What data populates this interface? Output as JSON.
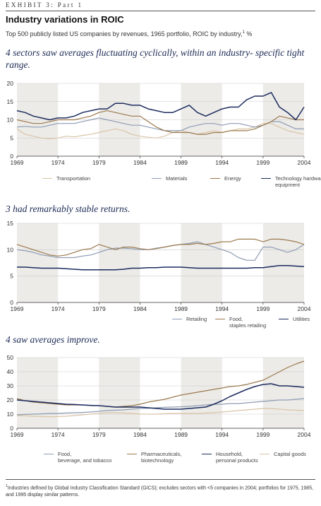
{
  "header": {
    "exhibit": "EXHIBIT 3: Part 1",
    "title": "Industry variations in ROIC",
    "subtitle_text": "Top 500 publicly listed US companies by revenues, 1965 portfolio, ROIC by industry,",
    "subtitle_sup": "1",
    "subtitle_tail": " %"
  },
  "colors": {
    "band": "#ecebe8",
    "grid": "#c9c9c9",
    "axis": "#333333"
  },
  "chart_data": [
    {
      "type": "line",
      "headline": "4 sectors saw averages fluctuating cyclically, within an industry- specific tight range.",
      "title": "",
      "xlabel": "",
      "ylabel": "",
      "xlim": [
        1969,
        2004
      ],
      "ylim": [
        0,
        20
      ],
      "y_ticks": [
        0,
        5,
        10,
        15,
        20
      ],
      "x_ticks": [
        1969,
        1974,
        1979,
        1984,
        1989,
        1994,
        1999,
        2004
      ],
      "grid": true,
      "x": [
        1969,
        1970,
        1971,
        1972,
        1973,
        1974,
        1975,
        1976,
        1977,
        1978,
        1979,
        1980,
        1981,
        1982,
        1983,
        1984,
        1985,
        1986,
        1987,
        1988,
        1989,
        1990,
        1991,
        1992,
        1993,
        1994,
        1995,
        1996,
        1997,
        1998,
        1999,
        2000,
        2001,
        2002,
        2003,
        2004
      ],
      "series": [
        {
          "name": "Transportation",
          "color": "#d9c4a6",
          "values": [
            7.5,
            6.0,
            5.5,
            5.0,
            4.8,
            5.0,
            5.5,
            5.3,
            5.7,
            6.0,
            6.5,
            7.0,
            7.5,
            7.0,
            6.0,
            5.5,
            5.2,
            5.0,
            5.5,
            6.5,
            7.0,
            6.5,
            6.0,
            6.5,
            7.0,
            6.5,
            7.0,
            7.5,
            7.5,
            8.0,
            9.0,
            9.0,
            8.0,
            7.0,
            6.5,
            6.0
          ]
        },
        {
          "name": "Materials",
          "color": "#8e9cb4",
          "values": [
            8.0,
            8.2,
            8.0,
            8.0,
            8.5,
            9.0,
            9.0,
            9.0,
            9.5,
            10.0,
            10.5,
            10.0,
            9.5,
            9.0,
            8.5,
            8.5,
            8.0,
            7.5,
            7.0,
            7.0,
            7.0,
            8.0,
            8.5,
            9.0,
            9.0,
            8.5,
            9.0,
            9.0,
            8.5,
            8.0,
            8.5,
            9.5,
            9.5,
            8.5,
            7.5,
            7.5
          ]
        },
        {
          "name": "Energy",
          "color": "#9c7a4e",
          "values": [
            10.0,
            9.5,
            9.0,
            9.0,
            9.5,
            10.0,
            10.0,
            10.0,
            10.5,
            11.0,
            12.0,
            12.5,
            12.0,
            11.5,
            11.0,
            11.0,
            9.5,
            8.0,
            7.0,
            6.5,
            6.5,
            6.5,
            6.0,
            6.0,
            6.5,
            6.5,
            7.0,
            7.0,
            7.0,
            7.5,
            8.5,
            9.5,
            11.0,
            10.5,
            10.0,
            10.0
          ]
        },
        {
          "name": "Technology hardware, equipment",
          "color": "#1c2c5e",
          "values": [
            12.5,
            12.0,
            11.0,
            10.5,
            10.0,
            10.5,
            10.5,
            11.0,
            12.0,
            12.5,
            13.0,
            13.0,
            14.5,
            14.5,
            14.0,
            14.0,
            13.0,
            12.5,
            12.0,
            12.0,
            13.0,
            14.0,
            12.0,
            11.0,
            12.0,
            13.0,
            13.5,
            13.5,
            15.5,
            16.5,
            16.5,
            17.5,
            13.5,
            12.0,
            10.0,
            13.5
          ]
        }
      ]
    },
    {
      "type": "line",
      "headline": "3 had remarkably stable returns.",
      "title": "",
      "xlabel": "",
      "ylabel": "",
      "xlim": [
        1969,
        2004
      ],
      "ylim": [
        0,
        15
      ],
      "y_ticks": [
        0,
        5,
        10,
        15
      ],
      "x_ticks": [
        1969,
        1974,
        1979,
        1984,
        1989,
        1994,
        1999,
        2004
      ],
      "grid": true,
      "x": [
        1969,
        1970,
        1971,
        1972,
        1973,
        1974,
        1975,
        1976,
        1977,
        1978,
        1979,
        1980,
        1981,
        1982,
        1983,
        1984,
        1985,
        1986,
        1987,
        1988,
        1989,
        1990,
        1991,
        1992,
        1993,
        1994,
        1995,
        1996,
        1997,
        1998,
        1999,
        2000,
        2001,
        2002,
        2003,
        2004
      ],
      "series": [
        {
          "name": "Retailing",
          "color": "#8e9cb4",
          "values": [
            10.0,
            9.8,
            9.5,
            9.0,
            8.8,
            8.5,
            8.5,
            8.5,
            8.8,
            9.0,
            9.5,
            10.0,
            10.3,
            10.3,
            10.2,
            10.0,
            10.0,
            10.3,
            10.5,
            10.8,
            11.0,
            11.2,
            11.5,
            11.0,
            10.5,
            10.0,
            9.5,
            8.5,
            8.0,
            8.0,
            10.5,
            10.5,
            10.0,
            9.5,
            10.0,
            11.0
          ]
        },
        {
          "name": "Food, staples retailing",
          "color": "#9c7a4e",
          "values": [
            11.0,
            10.5,
            10.0,
            9.5,
            9.0,
            8.8,
            9.0,
            9.5,
            10.0,
            10.2,
            11.0,
            10.5,
            10.0,
            10.5,
            10.5,
            10.2,
            10.0,
            10.2,
            10.5,
            10.8,
            11.0,
            11.0,
            11.2,
            11.0,
            11.2,
            11.5,
            11.5,
            12.0,
            12.0,
            12.0,
            11.5,
            12.0,
            12.0,
            11.8,
            11.5,
            11.0
          ]
        },
        {
          "name": "Utilities",
          "color": "#1c2c5e",
          "values": [
            6.7,
            6.7,
            6.6,
            6.5,
            6.5,
            6.5,
            6.4,
            6.3,
            6.2,
            6.2,
            6.2,
            6.2,
            6.2,
            6.3,
            6.5,
            6.5,
            6.6,
            6.6,
            6.7,
            6.7,
            6.7,
            6.6,
            6.5,
            6.5,
            6.5,
            6.5,
            6.5,
            6.5,
            6.5,
            6.6,
            6.6,
            6.8,
            7.0,
            7.0,
            6.9,
            6.8
          ]
        }
      ]
    },
    {
      "type": "line",
      "headline": "4 saw averages improve.",
      "title": "",
      "xlabel": "",
      "ylabel": "",
      "xlim": [
        1969,
        2004
      ],
      "ylim": [
        0,
        50
      ],
      "y_ticks": [
        0,
        10,
        20,
        30,
        40,
        50
      ],
      "x_ticks": [
        1969,
        1974,
        1979,
        1984,
        1989,
        1994,
        1999,
        2004
      ],
      "grid": true,
      "x": [
        1969,
        1970,
        1971,
        1972,
        1973,
        1974,
        1975,
        1976,
        1977,
        1978,
        1979,
        1980,
        1981,
        1982,
        1983,
        1984,
        1985,
        1986,
        1987,
        1988,
        1989,
        1990,
        1991,
        1992,
        1993,
        1994,
        1995,
        1996,
        1997,
        1998,
        1999,
        2000,
        2001,
        2002,
        2003,
        2004
      ],
      "series": [
        {
          "name": "Food, beverage, and tobacco",
          "color": "#8e9cb4",
          "values": [
            9.5,
            9.8,
            10.0,
            10.2,
            10.5,
            10.5,
            10.8,
            11.0,
            11.2,
            11.5,
            12.0,
            12.5,
            12.8,
            13.0,
            13.5,
            14.0,
            14.2,
            14.5,
            14.8,
            15.0,
            15.2,
            15.5,
            16.0,
            16.5,
            17.0,
            17.0,
            17.5,
            17.5,
            18.0,
            18.5,
            19.0,
            19.5,
            20.0,
            20.0,
            20.5,
            21.0
          ]
        },
        {
          "name": "Pharmaceuticals, biotechnology",
          "color": "#9c7a4e",
          "values": [
            21.0,
            19.5,
            18.5,
            18.0,
            17.5,
            17.0,
            16.5,
            16.5,
            16.5,
            16.0,
            16.0,
            15.5,
            15.0,
            15.5,
            16.0,
            17.0,
            18.5,
            19.5,
            20.5,
            22.0,
            23.5,
            24.5,
            25.5,
            26.5,
            27.5,
            28.5,
            29.5,
            30.0,
            31.0,
            32.5,
            34.0,
            37.0,
            40.0,
            43.0,
            45.5,
            47.5
          ]
        },
        {
          "name": "Household, personal products",
          "color": "#1c2c5e",
          "values": [
            20.0,
            19.5,
            19.0,
            18.5,
            18.0,
            17.5,
            17.0,
            16.8,
            16.5,
            16.2,
            16.0,
            15.5,
            15.0,
            15.0,
            15.0,
            15.0,
            14.5,
            14.0,
            13.5,
            13.5,
            13.5,
            14.0,
            14.5,
            15.0,
            17.0,
            19.5,
            22.5,
            25.0,
            27.5,
            29.5,
            31.0,
            31.5,
            30.0,
            30.0,
            29.5,
            29.0
          ]
        },
        {
          "name": "Capital goods",
          "color": "#d9c4a6",
          "values": [
            9.0,
            8.8,
            8.5,
            8.3,
            8.2,
            8.3,
            8.5,
            9.0,
            9.5,
            10.0,
            10.5,
            11.0,
            11.0,
            10.8,
            10.5,
            10.0,
            10.0,
            10.0,
            10.3,
            10.5,
            10.5,
            10.5,
            10.5,
            10.8,
            11.0,
            11.5,
            12.0,
            12.5,
            13.0,
            13.5,
            14.0,
            14.0,
            13.5,
            13.0,
            12.8,
            12.5
          ]
        }
      ]
    }
  ],
  "footnote": {
    "sup": "1",
    "text": "Industries defined by Global Industry Classification Standard (GICS); excludes sectors with <5 companies in 2004; portfolios for 1975, 1985, and 1995 display similar patterns."
  }
}
